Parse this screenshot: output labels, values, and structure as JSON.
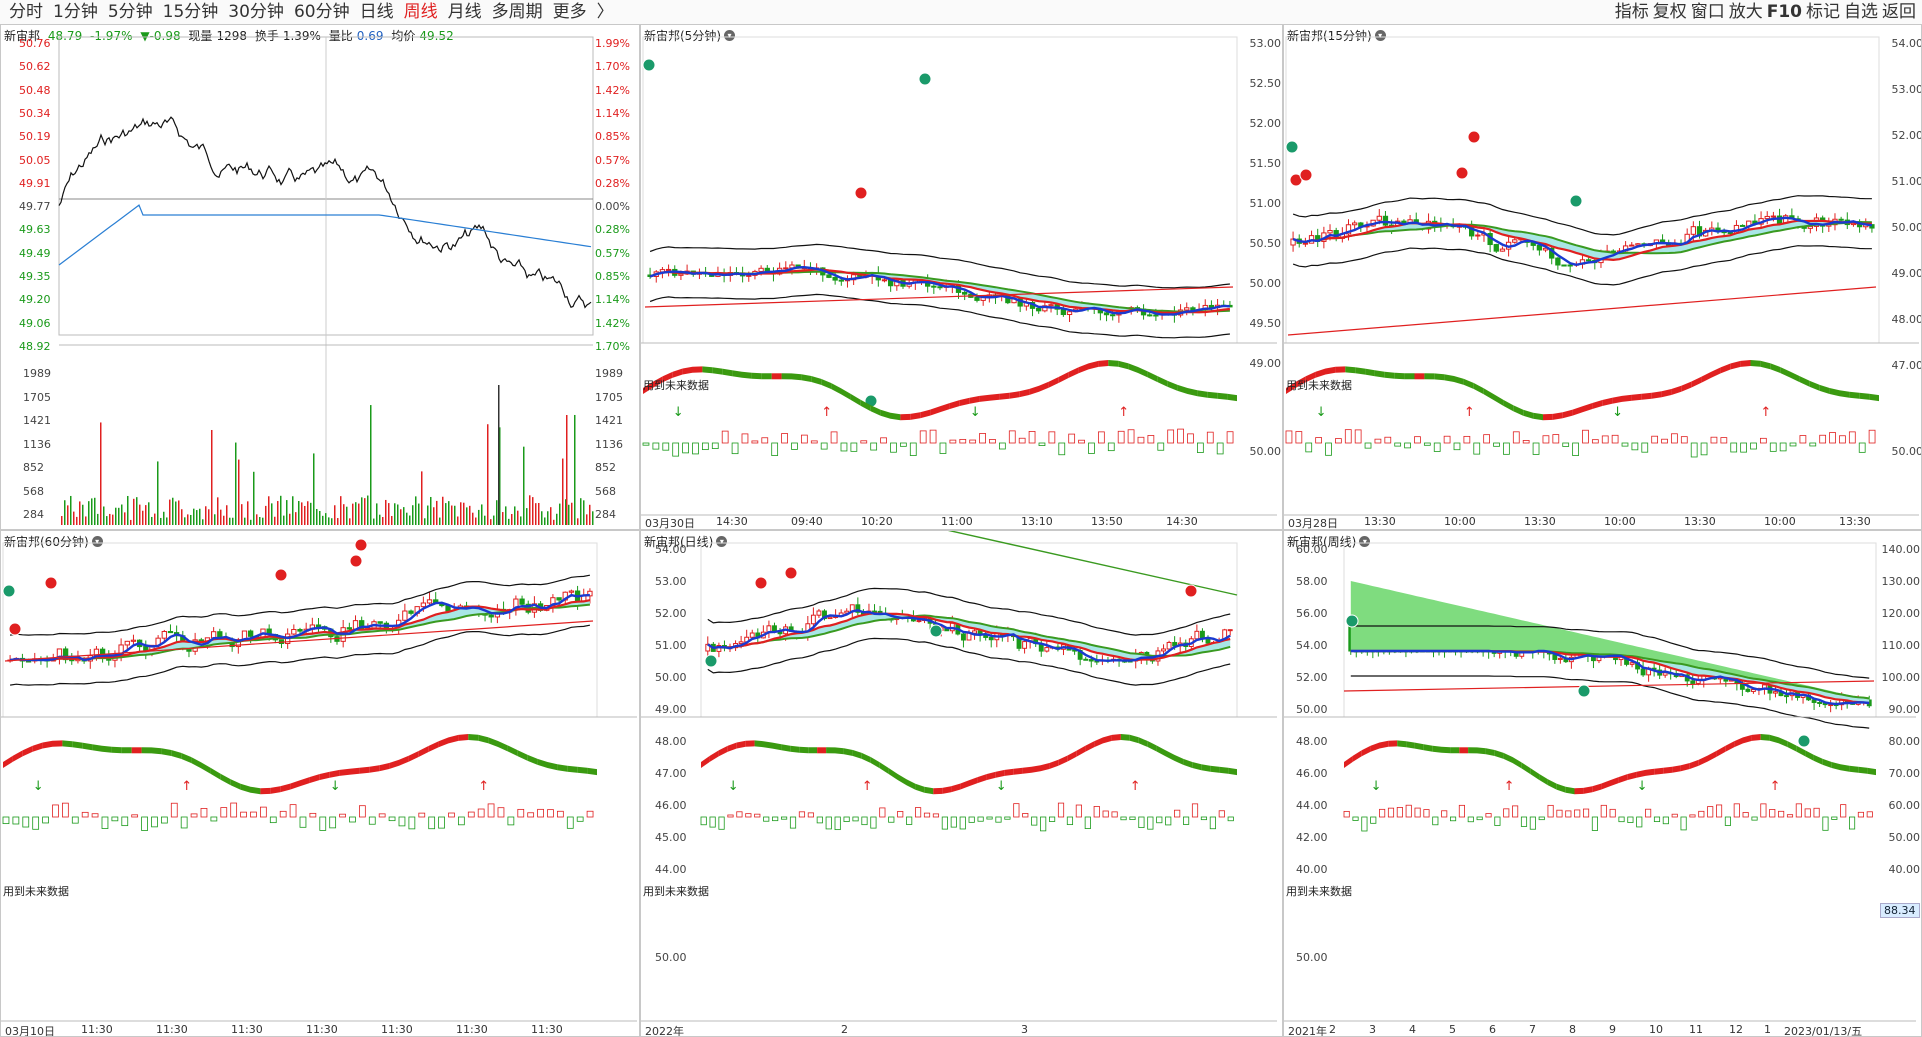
{
  "toolbar": {
    "periods": [
      "分时",
      "1分钟",
      "5分钟",
      "15分钟",
      "30分钟",
      "60分钟",
      "日线",
      "周线",
      "月线",
      "多周期",
      "更多"
    ],
    "active": "周线",
    "more_arrow": "〉",
    "right": [
      "指标",
      "复权",
      "窗口",
      "放大",
      "F10",
      "标记",
      "自选",
      "返回"
    ]
  },
  "intraday": {
    "stock": "新宙邦",
    "price": "48.79",
    "pct": "-1.97%",
    "change": "▼-0.98",
    "volume_label": "现量",
    "volume": "1298",
    "turnover_label": "换手",
    "turnover": "1.39%",
    "ratio_label": "量比",
    "ratio": "0.69",
    "avg_label": "均价",
    "avg": "49.52",
    "price_axis": [
      "50.76",
      "50.62",
      "50.48",
      "50.34",
      "50.19",
      "50.05",
      "49.91",
      "49.77",
      "49.63",
      "49.49",
      "49.35",
      "49.20",
      "49.06",
      "48.92"
    ],
    "pct_axis": [
      "1.99%",
      "1.70%",
      "1.42%",
      "1.14%",
      "0.85%",
      "0.57%",
      "0.28%",
      "0.00%",
      "0.28%",
      "0.57%",
      "0.85%",
      "1.14%",
      "1.42%",
      "1.70%"
    ],
    "vol_axis": [
      "1989",
      "1705",
      "1421",
      "1136",
      "852",
      "568",
      "284"
    ],
    "vol_axis_right": [
      "1989",
      "1705",
      "1421",
      "1136",
      "852",
      "568",
      "284"
    ],
    "colors": {
      "price_line": "#111111",
      "avg_line": "#2a7fd4",
      "up": "#e02020",
      "down": "#1a9a1a"
    }
  },
  "charts": [
    {
      "id": "m5",
      "title": "新宙邦(5分钟)",
      "future": "用到未来数据",
      "y_axis": [],
      "y_axis_right": [
        "53.00",
        "52.50",
        "52.00",
        "51.50",
        "51.00",
        "50.50",
        "50.00",
        "49.50",
        "49.00"
      ],
      "sub_axis": [
        "50.00"
      ],
      "x_axis": [
        "03月30日",
        "14:30",
        "09:40",
        "10:20",
        "11:00",
        "13:10",
        "13:50",
        "14:30"
      ]
    },
    {
      "id": "m15",
      "title": "新宙邦(15分钟)",
      "future": "用到未来数据",
      "y_axis_right": [
        "54.00",
        "53.00",
        "52.00",
        "51.00",
        "50.00",
        "49.00",
        "48.00",
        "47.00"
      ],
      "sub_axis": [
        "50.00"
      ],
      "x_axis": [
        "03月28日",
        "13:30",
        "10:00",
        "13:30",
        "10:00",
        "13:30",
        "10:00",
        "13:30"
      ]
    },
    {
      "id": "m60",
      "title": "新宙邦(60分钟)",
      "future": "用到未来数据",
      "x_axis": [
        "03月10日",
        "11:30",
        "11:30",
        "11:30",
        "11:30",
        "11:30",
        "11:30",
        "11:30"
      ]
    },
    {
      "id": "day",
      "title": "新宙邦(日线)",
      "future": "用到未来数据",
      "y_axis": [
        "54.00",
        "53.00",
        "52.00",
        "51.00",
        "50.00",
        "49.00",
        "48.00",
        "47.00",
        "46.00",
        "45.00",
        "44.00"
      ],
      "sub_axis": [
        "50.00"
      ],
      "x_axis": [
        "2022年",
        "2",
        "3"
      ]
    },
    {
      "id": "week",
      "title": "新宙邦(周线)",
      "future": "用到未来数据",
      "y_axis": [
        "60.00",
        "58.00",
        "56.00",
        "54.00",
        "52.00",
        "50.00",
        "48.00",
        "46.00",
        "44.00",
        "42.00",
        "40.00"
      ],
      "y_axis_right": [
        "140.00",
        "130.00",
        "120.00",
        "110.00",
        "100.00",
        "90.00",
        "80.00",
        "70.00",
        "60.00",
        "50.00",
        "40.00"
      ],
      "sub_axis": [
        "50.00"
      ],
      "badge": "88.34",
      "x_axis": [
        "2021年",
        "2",
        "3",
        "4",
        "5",
        "6",
        "7",
        "8",
        "9",
        "10",
        "11",
        "12",
        "1",
        "2023/01/13/五"
      ]
    }
  ]
}
